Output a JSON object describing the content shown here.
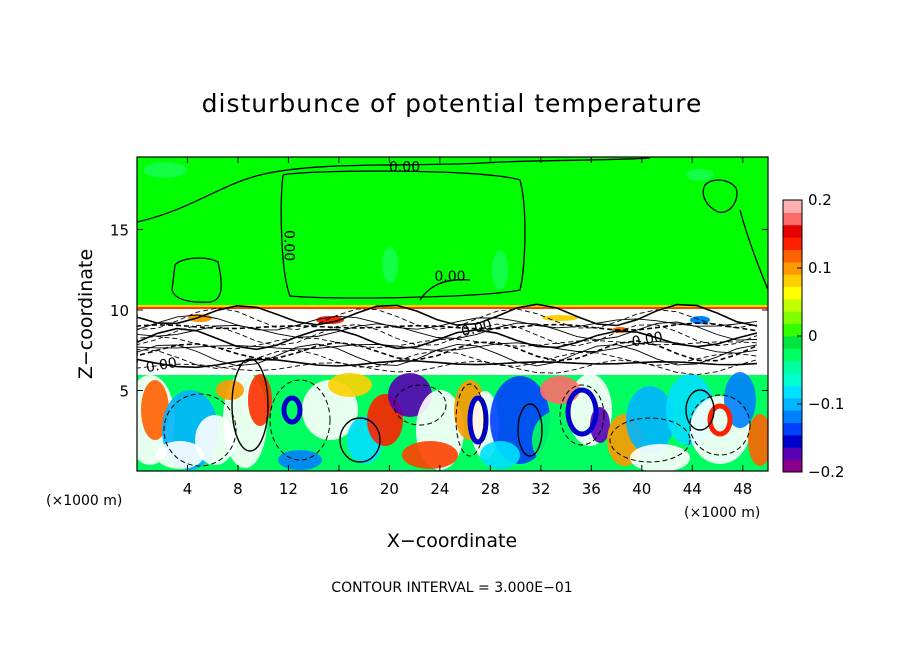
{
  "chart_data": {
    "type": "heatmap",
    "title": "disturbunce of potential temperature",
    "xlabel": "X−coordinate",
    "ylabel": "Z−coordinate",
    "x_unit_left": "(×1000 m)",
    "x_unit_right": "(×1000 m)",
    "x_ticks": [
      4,
      8,
      12,
      16,
      20,
      24,
      28,
      32,
      36,
      40,
      44,
      48
    ],
    "y_ticks": [
      5,
      10,
      15
    ],
    "xlim": [
      0,
      50
    ],
    "ylim": [
      0,
      19.5
    ],
    "colorbar": {
      "range": [
        -0.2,
        0.2
      ],
      "ticks": [
        {
          "value": 0.2,
          "label": "0.2"
        },
        {
          "value": 0.1,
          "label": "0.1"
        },
        {
          "value": 0,
          "label": "0"
        },
        {
          "value": -0.1,
          "label": "−0.1"
        },
        {
          "value": -0.2,
          "label": "−0.2"
        }
      ],
      "colors": [
        "#8b008b",
        "#5a00b4",
        "#0000cd",
        "#0040ff",
        "#0080ff",
        "#00b4ff",
        "#00e0ff",
        "#00ffd0",
        "#00ffa0",
        "#00ff60",
        "#00e640",
        "#30ff00",
        "#80ff00",
        "#c0ff00",
        "#ffff00",
        "#ffd000",
        "#ff9900",
        "#ff6000",
        "#ff2000",
        "#e60000",
        "#ff6a6a",
        "#ffb0b0"
      ]
    },
    "contour_labels": [
      {
        "text": "0.00",
        "x": 21.2,
        "y": 18.6,
        "rotate": 0
      },
      {
        "text": "0.00",
        "x": 24.8,
        "y": 11.8,
        "rotate": 0
      },
      {
        "text": "0.00",
        "x": 11.7,
        "y": 14.0,
        "rotate": 90
      },
      {
        "text": "0.00",
        "x": 2.0,
        "y": 6.3,
        "rotate": -10
      },
      {
        "text": "0.00",
        "x": 27.0,
        "y": 8.6,
        "rotate": -15
      },
      {
        "text": "0.00",
        "x": 40.5,
        "y": 7.9,
        "rotate": -10
      }
    ],
    "footer_note": "CONTOUR INTERVAL = 3.000E−01"
  }
}
